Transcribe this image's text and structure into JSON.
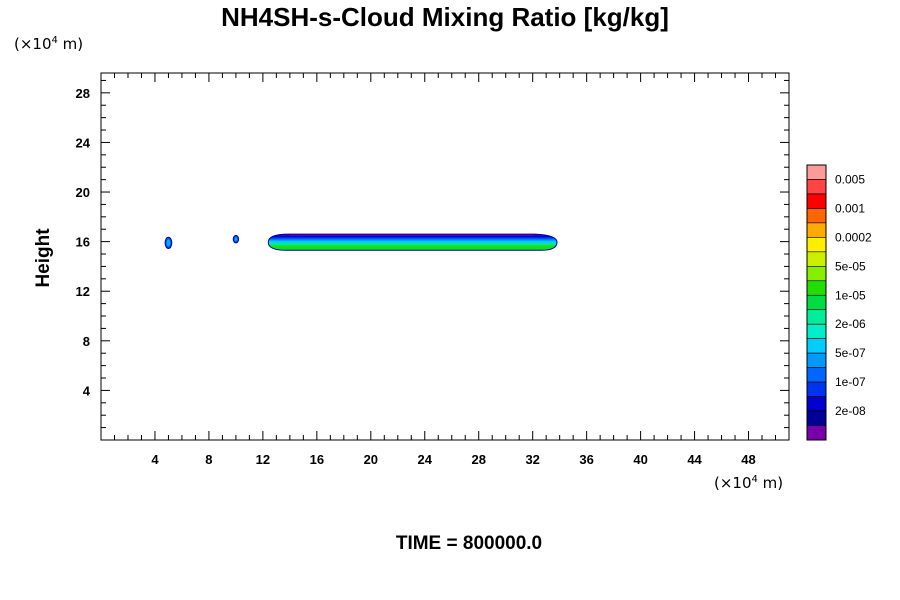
{
  "chart_data": {
    "type": "contour",
    "title": "NH4SH-s-Cloud Mixing Ratio [kg/kg]",
    "ylabel": "Height",
    "x_unit": {
      "prefix": "(×10",
      "exp": "4",
      "suffix": " m)"
    },
    "y_unit": {
      "prefix": "(×10",
      "exp": "4",
      "suffix": " m)"
    },
    "xlim": [
      0,
      51
    ],
    "ylim": [
      0,
      29.6
    ],
    "x_ticks": [
      "4",
      "8",
      "12",
      "16",
      "20",
      "24",
      "28",
      "32",
      "36",
      "40",
      "44",
      "48"
    ],
    "x_tick_values": [
      4,
      8,
      12,
      16,
      20,
      24,
      28,
      32,
      36,
      40,
      44,
      48
    ],
    "y_ticks": [
      "4",
      "8",
      "12",
      "16",
      "20",
      "24",
      "28"
    ],
    "y_tick_values": [
      4,
      8,
      12,
      16,
      20,
      24,
      28
    ],
    "time_label": "TIME = 800000.0",
    "colorbar": {
      "labels": [
        "0.005",
        "0.001",
        "0.0002",
        "5e-05",
        "1e-05",
        "2e-06",
        "5e-07",
        "1e-07",
        "2e-08"
      ],
      "colors_top_to_bottom": [
        "#ff9a9a",
        "#ff4444",
        "#ff0000",
        "#ff6600",
        "#ffaa00",
        "#ffee00",
        "#ccee00",
        "#88ee00",
        "#22dd00",
        "#00dd44",
        "#00ee99",
        "#00eecc",
        "#00ccff",
        "#0099ff",
        "#0066ff",
        "#0033ee",
        "#0000cc",
        "#000099",
        "#7700aa"
      ]
    },
    "cloud_features": [
      {
        "x_center": 23.2,
        "y_center": 15.9,
        "x_min": 12.4,
        "x_max": 33.8,
        "y_min": 15.3,
        "y_max": 16.6,
        "max_level": "2e-06"
      },
      {
        "x_center": 5.0,
        "y_center": 15.9,
        "x_min": 4.8,
        "x_max": 5.3,
        "y_min": 15.4,
        "y_max": 16.3,
        "max_level": "1e-07"
      },
      {
        "x_center": 10.0,
        "y_center": 16.2,
        "x_min": 9.8,
        "x_max": 10.2,
        "y_min": 15.9,
        "y_max": 16.5,
        "max_level": "1e-07"
      }
    ]
  }
}
